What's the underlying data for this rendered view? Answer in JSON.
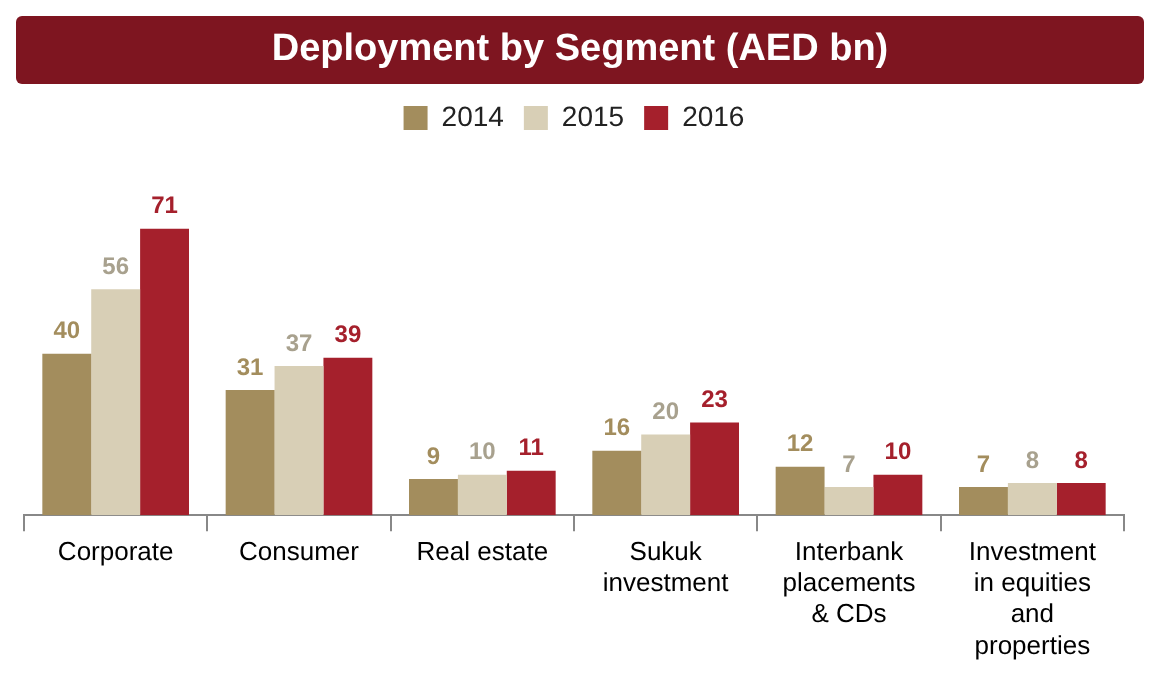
{
  "chart_data": {
    "type": "bar",
    "title": "Deployment by Segment (AED bn)",
    "categories": [
      "Corporate",
      "Consumer",
      "Real estate",
      "Sukuk investment",
      "Interbank placements & CDs",
      "Investment in equities and properties"
    ],
    "series": [
      {
        "name": "2014",
        "color": "#a38d5d",
        "values": [
          40,
          31,
          9,
          16,
          12,
          7
        ]
      },
      {
        "name": "2015",
        "color": "#d8cfb6",
        "values": [
          56,
          37,
          10,
          20,
          7,
          8
        ]
      },
      {
        "name": "2016",
        "color": "#a5202c",
        "values": [
          71,
          39,
          11,
          23,
          10,
          8
        ]
      }
    ],
    "data_labels": true,
    "legend": "top"
  }
}
